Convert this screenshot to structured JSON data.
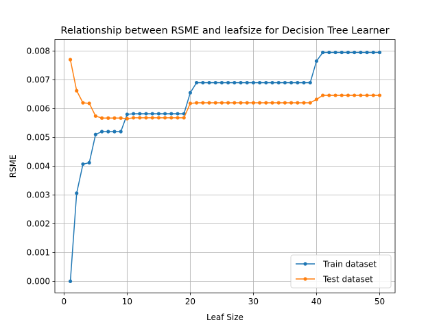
{
  "chart_data": {
    "type": "line",
    "title": "Relationship between RSME and leafsize for Decision Tree Learner",
    "xlabel": "Leaf Size",
    "ylabel": "RSME",
    "xlim": [
      -1.45,
      52.45
    ],
    "ylim": [
      -0.0004,
      0.0084
    ],
    "xticks": [
      0,
      10,
      20,
      30,
      40,
      50
    ],
    "xtick_labels": [
      "0",
      "10",
      "20",
      "30",
      "40",
      "50"
    ],
    "yticks": [
      0.0,
      0.001,
      0.002,
      0.003,
      0.004,
      0.005,
      0.006,
      0.007,
      0.008
    ],
    "ytick_labels": [
      "0.000",
      "0.001",
      "0.002",
      "0.003",
      "0.004",
      "0.005",
      "0.006",
      "0.007",
      "0.008"
    ],
    "grid": true,
    "legend_position": "lower-right",
    "marker": "circle",
    "x": [
      1,
      2,
      3,
      4,
      5,
      6,
      7,
      8,
      9,
      10,
      11,
      12,
      13,
      14,
      15,
      16,
      17,
      18,
      19,
      20,
      21,
      22,
      23,
      24,
      25,
      26,
      27,
      28,
      29,
      30,
      31,
      32,
      33,
      34,
      35,
      36,
      37,
      38,
      39,
      40,
      41,
      42,
      43,
      44,
      45,
      46,
      47,
      48,
      49,
      50
    ],
    "series": [
      {
        "name": "Train dataset",
        "color": "#1f77b4",
        "values": [
          0.0,
          0.00306,
          0.00407,
          0.00412,
          0.0051,
          0.0052,
          0.0052,
          0.0052,
          0.0052,
          0.0058,
          0.00582,
          0.00582,
          0.00582,
          0.00582,
          0.00582,
          0.00582,
          0.00582,
          0.00582,
          0.00582,
          0.00655,
          0.0069,
          0.0069,
          0.0069,
          0.0069,
          0.0069,
          0.0069,
          0.0069,
          0.0069,
          0.0069,
          0.0069,
          0.0069,
          0.0069,
          0.0069,
          0.0069,
          0.0069,
          0.0069,
          0.0069,
          0.0069,
          0.0069,
          0.00765,
          0.00795,
          0.00795,
          0.00795,
          0.00795,
          0.00795,
          0.00795,
          0.00795,
          0.00795,
          0.00795,
          0.00795
        ]
      },
      {
        "name": "Test dataset",
        "color": "#ff7f0e",
        "values": [
          0.0077,
          0.00662,
          0.0062,
          0.00618,
          0.00574,
          0.00567,
          0.00567,
          0.00567,
          0.00567,
          0.00565,
          0.00568,
          0.00568,
          0.00568,
          0.00568,
          0.00568,
          0.00568,
          0.00568,
          0.00568,
          0.00568,
          0.00618,
          0.0062,
          0.0062,
          0.0062,
          0.0062,
          0.0062,
          0.0062,
          0.0062,
          0.0062,
          0.0062,
          0.0062,
          0.0062,
          0.0062,
          0.0062,
          0.0062,
          0.0062,
          0.0062,
          0.0062,
          0.0062,
          0.0062,
          0.00632,
          0.00646,
          0.00646,
          0.00646,
          0.00646,
          0.00646,
          0.00646,
          0.00646,
          0.00646,
          0.00646,
          0.00646
        ]
      }
    ]
  }
}
